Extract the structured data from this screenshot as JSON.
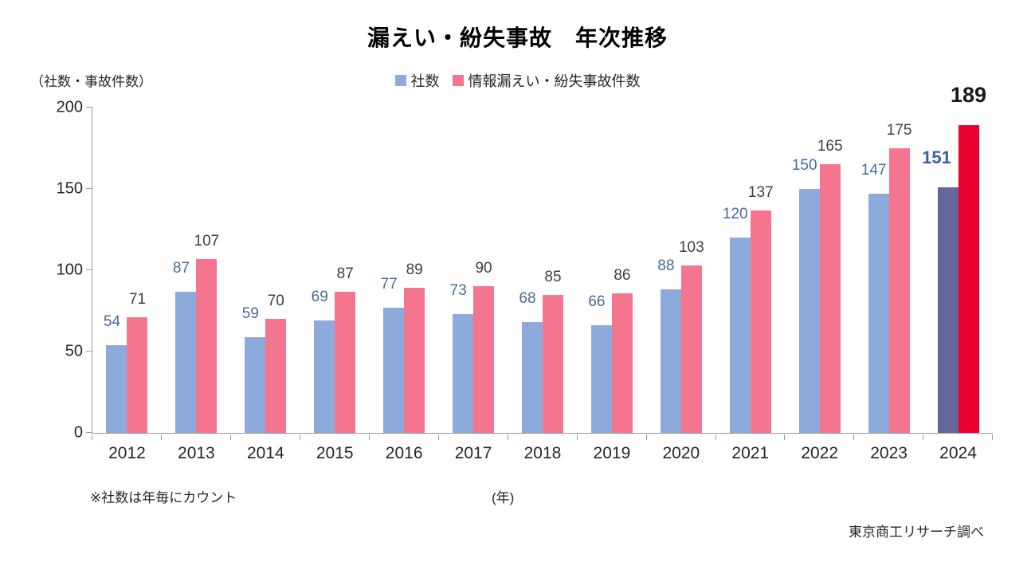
{
  "title": "漏えい・紛失事故　年次推移",
  "unit_label": "（社数・事故件数）",
  "legend": {
    "items": [
      {
        "label": "社数",
        "color": "#8EA9DB"
      },
      {
        "label": "情報漏えい・紛失事故件数",
        "color": "#F4758D"
      }
    ]
  },
  "footnotes": {
    "note": "※社数は年毎にカウント",
    "xlabel": "(年)",
    "source": "東京商工リサーチ調べ"
  },
  "chart_data": {
    "type": "bar",
    "title": "漏えい・紛失事故　年次推移",
    "categories": [
      "2012",
      "2013",
      "2014",
      "2015",
      "2016",
      "2017",
      "2018",
      "2019",
      "2020",
      "2021",
      "2022",
      "2023",
      "2024"
    ],
    "series": [
      {
        "name": "社数",
        "values": [
          54,
          87,
          59,
          69,
          77,
          73,
          68,
          66,
          88,
          120,
          150,
          147,
          151
        ],
        "color": "#8EA9DB",
        "highlight_color": "#66669B",
        "label_color": "#476A9C",
        "highlight_label_color": "#3A5FA8"
      },
      {
        "name": "情報漏えい・紛失事故件数",
        "values": [
          71,
          107,
          70,
          87,
          89,
          90,
          85,
          86,
          103,
          137,
          165,
          175,
          189
        ],
        "color": "#F4758D",
        "highlight_color": "#E9002D",
        "label_color": "#3F3F3F",
        "highlight_label_color": "#17171F"
      }
    ],
    "highlight_category": "2024",
    "ylabel": "（社数・事故件数）",
    "xlabel": "(年)",
    "ylim": [
      0,
      200
    ],
    "yticks": [
      0,
      50,
      100,
      150,
      200
    ],
    "grid": false,
    "legend_position": "top-center"
  }
}
